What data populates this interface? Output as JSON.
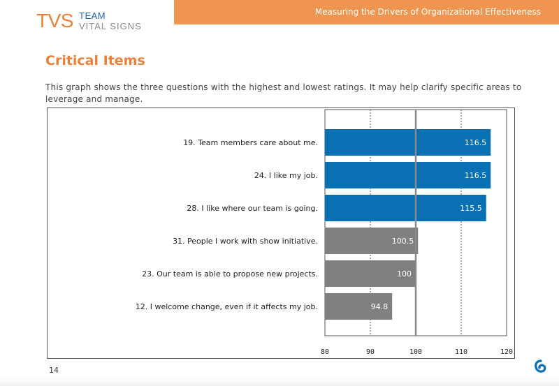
{
  "logo": {
    "brand": "TVS",
    "line1": "TEAM",
    "line2": "VITAL SIGNS"
  },
  "header": {
    "title": "Measuring the Drivers of Organizational Effectiveness"
  },
  "section_title": "Critical Items",
  "intro": "This graph shows the three questions with the highest and lowest ratings.  It may help clarify specific areas to leverage and manage.",
  "page_number": "14",
  "icon": "brand-mark-icon",
  "colors": {
    "accent": "#f0954f",
    "high": "#0a70b4",
    "low": "#808080",
    "logo_blue": "#1f63a8"
  },
  "chart_data": {
    "type": "bar",
    "orientation": "horizontal",
    "categories": [
      "19. Team members care about me.",
      "24. I like my job.",
      "28. I like where our team is going.",
      "31. People I work with show initiative.",
      "23. Our team is able to propose new projects.",
      "12. I welcome change, even if it affects my job."
    ],
    "values": [
      116.5,
      116.5,
      115.5,
      100.5,
      100,
      94.8
    ],
    "value_labels": [
      "116.5",
      "116.5",
      "115.5",
      "100.5",
      "100",
      "94.8"
    ],
    "groups": [
      "high",
      "high",
      "high",
      "low",
      "low",
      "low"
    ],
    "xlim": [
      80,
      120
    ],
    "xticks": [
      "80",
      "90",
      "100",
      "110",
      "120"
    ],
    "reference_line": 100,
    "grid": "dashed vertical",
    "title": "",
    "xlabel": "",
    "ylabel": ""
  }
}
